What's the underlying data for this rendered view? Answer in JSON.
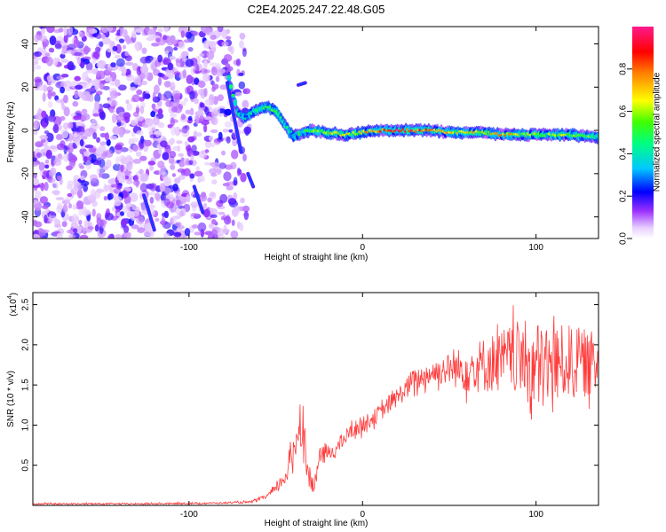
{
  "title": "C2E4.2025.247.22.48.G05",
  "chart_data": [
    {
      "type": "heatmap",
      "title": "C2E4.2025.247.22.48.G05",
      "xlabel": "Height of straight line (km)",
      "ylabel": "Frequency (Hz)",
      "xlim": [
        -190,
        136
      ],
      "ylim": [
        -50,
        48
      ],
      "xticks": [
        -100,
        0,
        100
      ],
      "xtick_labels": [
        "-100",
        "0",
        "100"
      ],
      "yticks": [
        -40,
        -20,
        0,
        20,
        40
      ],
      "ytick_labels": [
        "-40",
        "-20",
        "0",
        "20",
        "40"
      ],
      "colorbar": {
        "label": "Normalized spectral amplitude",
        "range": [
          0,
          1
        ],
        "ticks": [
          0,
          0.2,
          0.4,
          0.6,
          0.8
        ],
        "tick_labels": [
          "0.0",
          "0.2",
          "0.4",
          "0.6",
          "0.8"
        ]
      },
      "noise_region_x": [
        -190,
        -65
      ],
      "ridge": [
        {
          "x": -77,
          "f": 24,
          "a": 0.35
        },
        {
          "x": -72,
          "f": 8,
          "a": 0.4
        },
        {
          "x": -68,
          "f": 6,
          "a": 0.3
        },
        {
          "x": -62,
          "f": 9,
          "a": 0.35
        },
        {
          "x": -55,
          "f": 11,
          "a": 0.55
        },
        {
          "x": -50,
          "f": 9,
          "a": 0.45
        },
        {
          "x": -45,
          "f": 3,
          "a": 0.4
        },
        {
          "x": -40,
          "f": -3,
          "a": 0.35
        },
        {
          "x": -35,
          "f": -1,
          "a": 0.4
        },
        {
          "x": -30,
          "f": 0,
          "a": 0.5
        },
        {
          "x": -20,
          "f": -1,
          "a": 0.6
        },
        {
          "x": -10,
          "f": -2,
          "a": 0.55
        },
        {
          "x": 0,
          "f": -1,
          "a": 0.65
        },
        {
          "x": 10,
          "f": 0,
          "a": 0.7
        },
        {
          "x": 20,
          "f": 0,
          "a": 0.9
        },
        {
          "x": 30,
          "f": 0,
          "a": 0.8
        },
        {
          "x": 40,
          "f": 0,
          "a": 0.75
        },
        {
          "x": 50,
          "f": -1,
          "a": 0.65
        },
        {
          "x": 60,
          "f": -1,
          "a": 0.6
        },
        {
          "x": 70,
          "f": -1,
          "a": 0.6
        },
        {
          "x": 80,
          "f": -2,
          "a": 0.7
        },
        {
          "x": 90,
          "f": -2,
          "a": 0.6
        },
        {
          "x": 100,
          "f": -2,
          "a": 0.55
        },
        {
          "x": 110,
          "f": -2,
          "a": 0.5
        },
        {
          "x": 120,
          "f": -2,
          "a": 0.55
        },
        {
          "x": 130,
          "f": -3,
          "a": 0.5
        },
        {
          "x": 136,
          "f": -3,
          "a": 0.45
        }
      ],
      "streaks": [
        {
          "x1": -78,
          "f1": 22,
          "x2": -70,
          "f2": -10
        },
        {
          "x1": -126,
          "f1": -30,
          "x2": -120,
          "f2": -46
        },
        {
          "x1": -97,
          "f1": -26,
          "x2": -92,
          "f2": -38
        },
        {
          "x1": -66,
          "f1": -20,
          "x2": -63,
          "f2": -26
        },
        {
          "x1": -37,
          "f1": 21,
          "x2": -33,
          "f2": 22
        }
      ]
    },
    {
      "type": "line",
      "xlabel": "Height of straight line (km)",
      "ylabel": "SNR (10 * v/v)",
      "multiplier_label": "(x10",
      "multiplier_exp": "4",
      "multiplier_close": ")",
      "xlim": [
        -190,
        136
      ],
      "ylim": [
        0,
        2.65
      ],
      "xticks": [
        -100,
        0,
        100
      ],
      "xtick_labels": [
        "-100",
        "0",
        "100"
      ],
      "yticks": [
        0.5,
        1.0,
        1.5,
        2.0,
        2.5
      ],
      "ytick_labels": [
        "0.5",
        "1.0",
        "1.5",
        "2.0",
        "2.5"
      ],
      "color": "#ff3b3b",
      "series": [
        {
          "name": "SNR",
          "x": [
            -190,
            -160,
            -130,
            -100,
            -80,
            -65,
            -60,
            -55,
            -50,
            -45,
            -40,
            -38,
            -35,
            -32,
            -30,
            -28,
            -25,
            -20,
            -15,
            -10,
            -5,
            0,
            10,
            20,
            30,
            40,
            50,
            60,
            70,
            80,
            90,
            100,
            110,
            120,
            136
          ],
          "mean": [
            0.02,
            0.02,
            0.02,
            0.025,
            0.03,
            0.04,
            0.07,
            0.12,
            0.2,
            0.35,
            0.6,
            0.9,
            1.1,
            0.5,
            0.3,
            0.2,
            0.6,
            0.65,
            0.7,
            0.85,
            0.95,
            1.0,
            1.15,
            1.35,
            1.55,
            1.65,
            1.7,
            1.7,
            1.75,
            1.8,
            1.85,
            1.7,
            1.75,
            1.8,
            1.75
          ],
          "spread": [
            0.01,
            0.01,
            0.01,
            0.01,
            0.01,
            0.015,
            0.02,
            0.03,
            0.05,
            0.12,
            0.2,
            0.3,
            0.35,
            0.2,
            0.12,
            0.1,
            0.12,
            0.1,
            0.1,
            0.1,
            0.1,
            0.1,
            0.1,
            0.12,
            0.15,
            0.15,
            0.2,
            0.3,
            0.35,
            0.4,
            0.45,
            0.6,
            0.5,
            0.45,
            0.4
          ]
        }
      ]
    }
  ]
}
